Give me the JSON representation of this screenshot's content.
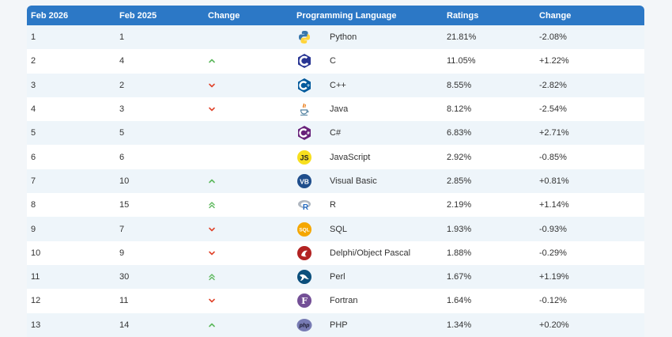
{
  "header": {
    "col_feb2026": "Feb 2026",
    "col_feb2025": "Feb 2025",
    "col_change": "Change",
    "col_language": "Programming Language",
    "col_ratings": "Ratings",
    "col_change2": "Change"
  },
  "rows": [
    {
      "rank2026": "1",
      "rank2025": "1",
      "trend": "none",
      "icon": "python-icon",
      "language": "Python",
      "rating": "21.81%",
      "change": "-2.08%"
    },
    {
      "rank2026": "2",
      "rank2025": "4",
      "trend": "up",
      "icon": "c-icon",
      "language": "C",
      "rating": "11.05%",
      "change": "+1.22%"
    },
    {
      "rank2026": "3",
      "rank2025": "2",
      "trend": "down",
      "icon": "cpp-icon",
      "language": "C++",
      "rating": "8.55%",
      "change": "-2.82%"
    },
    {
      "rank2026": "4",
      "rank2025": "3",
      "trend": "down",
      "icon": "java-icon",
      "language": "Java",
      "rating": "8.12%",
      "change": "-2.54%"
    },
    {
      "rank2026": "5",
      "rank2025": "5",
      "trend": "none",
      "icon": "csharp-icon",
      "language": "C#",
      "rating": "6.83%",
      "change": "+2.71%"
    },
    {
      "rank2026": "6",
      "rank2025": "6",
      "trend": "none",
      "icon": "javascript-icon",
      "language": "JavaScript",
      "rating": "2.92%",
      "change": "-0.85%"
    },
    {
      "rank2026": "7",
      "rank2025": "10",
      "trend": "up",
      "icon": "visual-basic-icon",
      "language": "Visual Basic",
      "rating": "2.85%",
      "change": "+0.81%"
    },
    {
      "rank2026": "8",
      "rank2025": "15",
      "trend": "double-up",
      "icon": "r-icon",
      "language": "R",
      "rating": "2.19%",
      "change": "+1.14%"
    },
    {
      "rank2026": "9",
      "rank2025": "7",
      "trend": "down",
      "icon": "sql-icon",
      "language": "SQL",
      "rating": "1.93%",
      "change": "-0.93%"
    },
    {
      "rank2026": "10",
      "rank2025": "9",
      "trend": "down",
      "icon": "delphi-icon",
      "language": "Delphi/Object Pascal",
      "rating": "1.88%",
      "change": "-0.29%"
    },
    {
      "rank2026": "11",
      "rank2025": "30",
      "trend": "double-up",
      "icon": "perl-icon",
      "language": "Perl",
      "rating": "1.67%",
      "change": "+1.19%"
    },
    {
      "rank2026": "12",
      "rank2025": "11",
      "trend": "down",
      "icon": "fortran-icon",
      "language": "Fortran",
      "rating": "1.64%",
      "change": "-0.12%"
    },
    {
      "rank2026": "13",
      "rank2025": "14",
      "trend": "up",
      "icon": "php-icon",
      "language": "PHP",
      "rating": "1.34%",
      "change": "+0.20%"
    }
  ],
  "colors": {
    "header_bg": "#2c78c6",
    "row_alt_bg": "#eef5fa",
    "up_arrow": "#5cb85c",
    "down_arrow": "#e0442b"
  }
}
